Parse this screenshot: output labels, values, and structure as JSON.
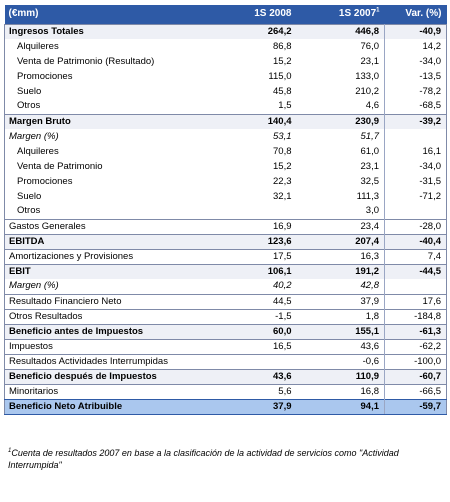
{
  "header": {
    "label": "(€mm)",
    "col1": "1S 2008",
    "col2": "1S 2007",
    "col2_sup": "1",
    "col3": "Var. (%)"
  },
  "rows": [
    {
      "label": "Ingresos Totales",
      "v1": "264,2",
      "v2": "446,8",
      "v3": "-40,9",
      "style": "main shade"
    },
    {
      "label": "Alquileres",
      "v1": "86,8",
      "v2": "76,0",
      "v3": "14,2",
      "style": "sub"
    },
    {
      "label": "Venta de Patrimonio (Resultado)",
      "v1": "15,2",
      "v2": "23,1",
      "v3": "-34,0",
      "style": "sub"
    },
    {
      "label": "Promociones",
      "v1": "115,0",
      "v2": "133,0",
      "v3": "-13,5",
      "style": "sub"
    },
    {
      "label": "Suelo",
      "v1": "45,8",
      "v2": "210,2",
      "v3": "-78,2",
      "style": "sub"
    },
    {
      "label": "Otros",
      "v1": "1,5",
      "v2": "4,6",
      "v3": "-68,5",
      "style": "sub"
    },
    {
      "label": "Margen Bruto",
      "v1": "140,4",
      "v2": "230,9",
      "v3": "-39,2",
      "style": "main shade"
    },
    {
      "label": "Margen (%)",
      "v1": "53,1",
      "v2": "51,7",
      "v3": "",
      "style": "it"
    },
    {
      "label": "Alquileres",
      "v1": "70,8",
      "v2": "61,0",
      "v3": "16,1",
      "style": "sub"
    },
    {
      "label": "Venta de Patrimonio",
      "v1": "15,2",
      "v2": "23,1",
      "v3": "-34,0",
      "style": "sub"
    },
    {
      "label": "Promociones",
      "v1": "22,3",
      "v2": "32,5",
      "v3": "-31,5",
      "style": "sub"
    },
    {
      "label": "Suelo",
      "v1": "32,1",
      "v2": "111,3",
      "v3": "-71,2",
      "style": "sub"
    },
    {
      "label": "Otros",
      "v1": "",
      "v2": "3,0",
      "v3": "",
      "style": "sub"
    },
    {
      "label": "Gastos Generales",
      "v1": "16,9",
      "v2": "23,4",
      "v3": "-28,0",
      "style": "topline"
    },
    {
      "label": "EBITDA",
      "v1": "123,6",
      "v2": "207,4",
      "v3": "-40,4",
      "style": "main shade"
    },
    {
      "label": "Amortizaciones y Provisiones",
      "v1": "17,5",
      "v2": "16,3",
      "v3": "7,4",
      "style": "topline"
    },
    {
      "label": "EBIT",
      "v1": "106,1",
      "v2": "191,2",
      "v3": "-44,5",
      "style": "main shade"
    },
    {
      "label": "Margen (%)",
      "v1": "40,2",
      "v2": "42,8",
      "v3": "",
      "style": "it"
    },
    {
      "label": "Resultado Financiero Neto",
      "v1": "44,5",
      "v2": "37,9",
      "v3": "17,6",
      "style": "topline"
    },
    {
      "label": "Otros Resultados",
      "v1": "-1,5",
      "v2": "1,8",
      "v3": "-184,8",
      "style": "topline"
    },
    {
      "label": "Beneficio antes de Impuestos",
      "v1": "60,0",
      "v2": "155,1",
      "v3": "-61,3",
      "style": "main shade"
    },
    {
      "label": "Impuestos",
      "v1": "16,5",
      "v2": "43,6",
      "v3": "-62,2",
      "style": "topline"
    },
    {
      "label": "Resultados Actividades Interrumpidas",
      "v1": "",
      "v2": "-0,6",
      "v3": "-100,0",
      "style": "topline"
    },
    {
      "label": "Beneficio después de Impuestos",
      "v1": "43,6",
      "v2": "110,9",
      "v3": "-60,7",
      "style": "main shade"
    },
    {
      "label": "Minoritarios",
      "v1": "5,6",
      "v2": "16,8",
      "v3": "-66,5",
      "style": "topline"
    },
    {
      "label": "Beneficio Neto Atribuible",
      "v1": "37,9",
      "v2": "94,1",
      "v3": "-59,7",
      "style": "final"
    }
  ],
  "footnote": {
    "mark": "1",
    "text": "Cuenta de resultados 2007 en base a la clasificación de la actividad de servicios como \"Actividad Interrumpida\""
  }
}
